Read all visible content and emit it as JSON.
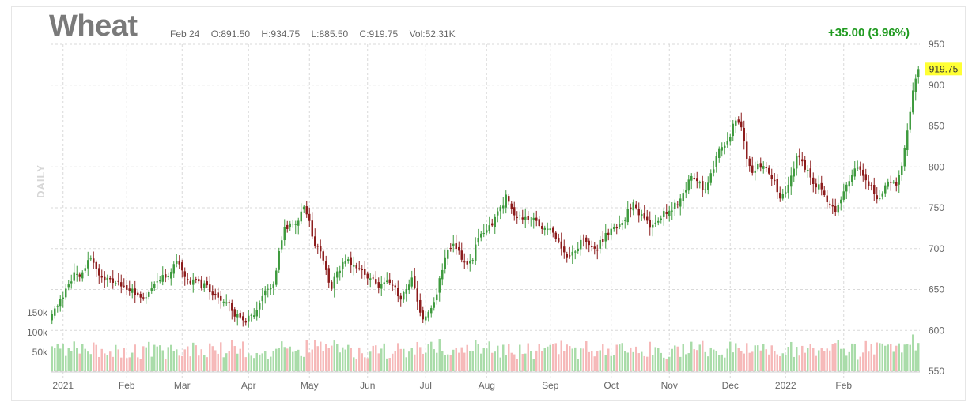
{
  "header": {
    "symbol": "Wheat",
    "date": "Feb 24",
    "open": "O:891.50",
    "high": "H:934.75",
    "low": "L:885.50",
    "close": "C:919.75",
    "volume": "Vol:52.31K",
    "change": "+35.00 (3.96%)",
    "period": "DAILY"
  },
  "colors": {
    "up": "#3d9a3d",
    "down": "#8b1a1a",
    "vol_up": "#a8dca8",
    "vol_down": "#f6b8b8",
    "grid": "#d9d9d9",
    "change": "#1f9a1f",
    "last_price_bg": "#ffff33"
  },
  "chart_data": {
    "type": "candlestick",
    "x_ticks": [
      "2021",
      "Feb",
      "Mar",
      "Apr",
      "May",
      "Jun",
      "Jul",
      "Aug",
      "Sep",
      "Oct",
      "Nov",
      "Dec",
      "2022",
      "Feb"
    ],
    "y_ticks": [
      550,
      600,
      650,
      700,
      750,
      800,
      850,
      900,
      950
    ],
    "ylim": [
      550,
      950
    ],
    "volume_ticks": [
      "50k",
      "100k",
      "150k"
    ],
    "last_price": "919.75",
    "grid": true,
    "close_keypoints": [
      [
        0,
        620
      ],
      [
        4,
        640
      ],
      [
        8,
        668
      ],
      [
        10,
        665
      ],
      [
        14,
        690
      ],
      [
        18,
        662
      ],
      [
        22,
        660
      ],
      [
        26,
        655
      ],
      [
        30,
        648
      ],
      [
        34,
        640
      ],
      [
        38,
        660
      ],
      [
        42,
        670
      ],
      [
        45,
        685
      ],
      [
        48,
        662
      ],
      [
        52,
        658
      ],
      [
        56,
        652
      ],
      [
        60,
        642
      ],
      [
        64,
        630
      ],
      [
        67,
        616
      ],
      [
        70,
        610
      ],
      [
        73,
        622
      ],
      [
        76,
        640
      ],
      [
        80,
        660
      ],
      [
        84,
        725
      ],
      [
        87,
        735
      ],
      [
        89,
        730
      ],
      [
        91,
        755
      ],
      [
        93,
        730
      ],
      [
        95,
        705
      ],
      [
        97,
        695
      ],
      [
        99,
        670
      ],
      [
        101,
        655
      ],
      [
        103,
        668
      ],
      [
        105,
        682
      ],
      [
        107,
        688
      ],
      [
        110,
        678
      ],
      [
        113,
        668
      ],
      [
        116,
        660
      ],
      [
        119,
        655
      ],
      [
        122,
        660
      ],
      [
        124,
        652
      ],
      [
        126,
        640
      ],
      [
        128,
        652
      ],
      [
        130,
        665
      ],
      [
        133,
        620
      ],
      [
        135,
        615
      ],
      [
        137,
        625
      ],
      [
        140,
        660
      ],
      [
        142,
        690
      ],
      [
        145,
        705
      ],
      [
        148,
        690
      ],
      [
        150,
        682
      ],
      [
        152,
        690
      ],
      [
        154,
        715
      ],
      [
        157,
        725
      ],
      [
        159,
        730
      ],
      [
        162,
        752
      ],
      [
        164,
        762
      ],
      [
        166,
        745
      ],
      [
        168,
        740
      ],
      [
        171,
        736
      ],
      [
        174,
        738
      ],
      [
        177,
        728
      ],
      [
        180,
        722
      ],
      [
        183,
        708
      ],
      [
        186,
        690
      ],
      [
        189,
        700
      ],
      [
        192,
        712
      ],
      [
        195,
        702
      ],
      [
        197,
        700
      ],
      [
        200,
        718
      ],
      [
        203,
        725
      ],
      [
        206,
        730
      ],
      [
        208,
        745
      ],
      [
        210,
        755
      ],
      [
        212,
        745
      ],
      [
        214,
        735
      ],
      [
        216,
        725
      ],
      [
        218,
        728
      ],
      [
        221,
        742
      ],
      [
        224,
        750
      ],
      [
        227,
        760
      ],
      [
        229,
        772
      ],
      [
        231,
        788
      ],
      [
        233,
        785
      ],
      [
        235,
        768
      ],
      [
        237,
        782
      ],
      [
        239,
        800
      ],
      [
        241,
        818
      ],
      [
        243,
        828
      ],
      [
        245,
        840
      ],
      [
        247,
        860
      ],
      [
        249,
        845
      ],
      [
        251,
        810
      ],
      [
        253,
        795
      ],
      [
        255,
        805
      ],
      [
        257,
        800
      ],
      [
        259,
        790
      ],
      [
        261,
        780
      ],
      [
        263,
        765
      ],
      [
        265,
        770
      ],
      [
        267,
        790
      ],
      [
        269,
        810
      ],
      [
        271,
        805
      ],
      [
        273,
        795
      ],
      [
        275,
        780
      ],
      [
        277,
        775
      ],
      [
        279,
        762
      ],
      [
        281,
        752
      ],
      [
        283,
        745
      ],
      [
        285,
        760
      ],
      [
        287,
        775
      ],
      [
        289,
        790
      ],
      [
        291,
        802
      ],
      [
        293,
        792
      ],
      [
        295,
        778
      ],
      [
        297,
        770
      ],
      [
        299,
        760
      ],
      [
        301,
        775
      ],
      [
        303,
        780
      ],
      [
        305,
        775
      ],
      [
        307,
        800
      ],
      [
        309,
        845
      ],
      [
        311,
        890
      ],
      [
        313,
        920
      ]
    ]
  }
}
